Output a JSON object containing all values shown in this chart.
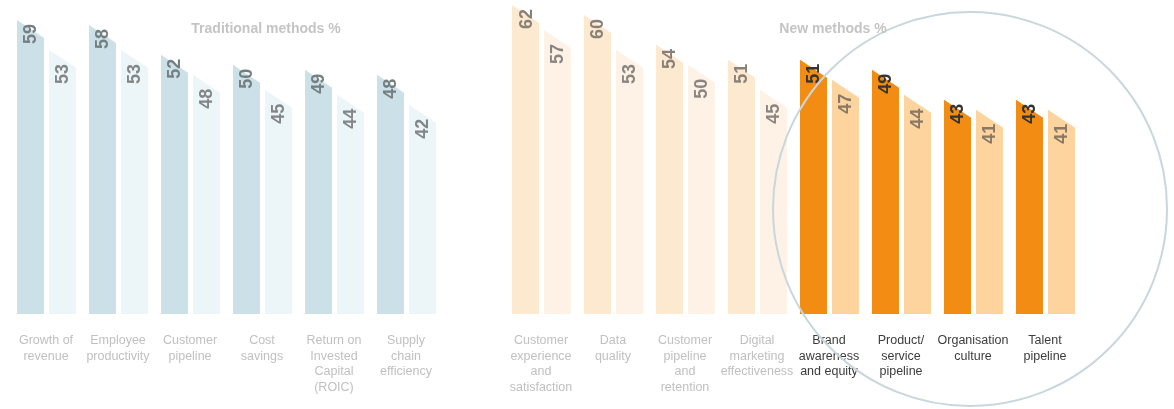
{
  "chart_data": [
    {
      "type": "bar",
      "title": "Traditional methods %",
      "categories": [
        "Growth of revenue",
        "Employee productivity",
        "Customer pipeline",
        "Cost savings",
        "Return on Invested Capital (ROIC)",
        "Supply chain efficiency"
      ],
      "series": [
        {
          "colors": [
            "#cbe1e7",
            "#cbe1e7",
            "#cbe1e7",
            "#cbe1e7",
            "#cbe1e7",
            "#cbe1e7"
          ],
          "values": [
            59,
            58,
            52,
            50,
            49,
            48
          ]
        },
        {
          "colors": [
            "#ecf5f8",
            "#ecf5f8",
            "#ecf5f8",
            "#ecf5f8",
            "#ecf5f8",
            "#ecf5f8"
          ],
          "values": [
            53,
            53,
            48,
            45,
            44,
            42
          ]
        }
      ],
      "data_labels": true
    },
    {
      "type": "bar",
      "title": "New methods %",
      "categories": [
        "Customer experience and satisfaction",
        "Data quality",
        "Customer pipeline and retention",
        "Digital marketing effectiveness",
        "Brand awareness and equity",
        "Product/ service pipeline",
        "Organisation culture",
        "Talent pipeline"
      ],
      "series": [
        {
          "colors": [
            "#fde8d0",
            "#fde8d0",
            "#fde8d0",
            "#fde8d0",
            "#f28c12",
            "#f28c12",
            "#f28c12",
            "#f28c12"
          ],
          "values": [
            62,
            60,
            54,
            51,
            51,
            49,
            43,
            43
          ]
        },
        {
          "colors": [
            "#fef2e6",
            "#fef2e6",
            "#fef2e6",
            "#fef2e6",
            "#fdd39e",
            "#fdd39e",
            "#fdd39e",
            "#fdd39e"
          ],
          "values": [
            57,
            53,
            50,
            45,
            47,
            44,
            41,
            41
          ]
        }
      ],
      "data_labels": true
    }
  ]
}
